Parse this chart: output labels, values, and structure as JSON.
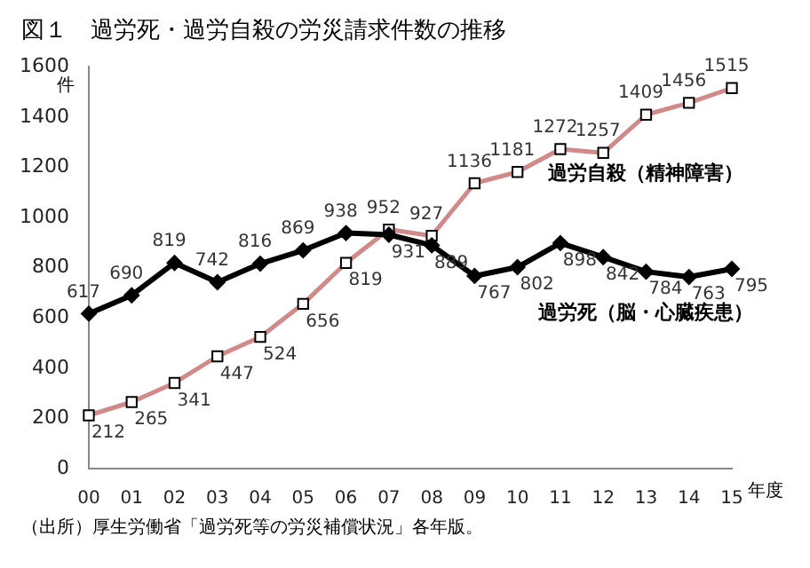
{
  "chart_data": {
    "type": "line",
    "title": "図１　過労死・過労自殺の労災請求件数の推移",
    "ylabel": "件",
    "xlabel": "年度",
    "categories": [
      "00",
      "01",
      "02",
      "03",
      "04",
      "05",
      "06",
      "07",
      "08",
      "09",
      "10",
      "11",
      "12",
      "13",
      "14",
      "15"
    ],
    "series": [
      {
        "name": "過労死（脳・心臓疾患）",
        "color": "#000000",
        "marker": "diamond",
        "values": [
          617,
          690,
          819,
          742,
          816,
          869,
          938,
          931,
          889,
          767,
          802,
          898,
          842,
          784,
          763,
          795
        ]
      },
      {
        "name": "過労自殺（精神障害）",
        "color": "#d08a8a",
        "marker": "square",
        "values": [
          212,
          265,
          341,
          447,
          524,
          656,
          819,
          952,
          927,
          1136,
          1181,
          1272,
          1257,
          1409,
          1456,
          1515
        ]
      }
    ],
    "ylim": [
      0,
      1600
    ],
    "yticks": [
      0,
      200,
      400,
      600,
      800,
      1000,
      1200,
      1400,
      1600
    ],
    "grid": false,
    "legend": false,
    "data_labels": true,
    "annotations": [
      "（出所）厚生労働省「過労死等の労災補償状況」各年版。"
    ]
  }
}
